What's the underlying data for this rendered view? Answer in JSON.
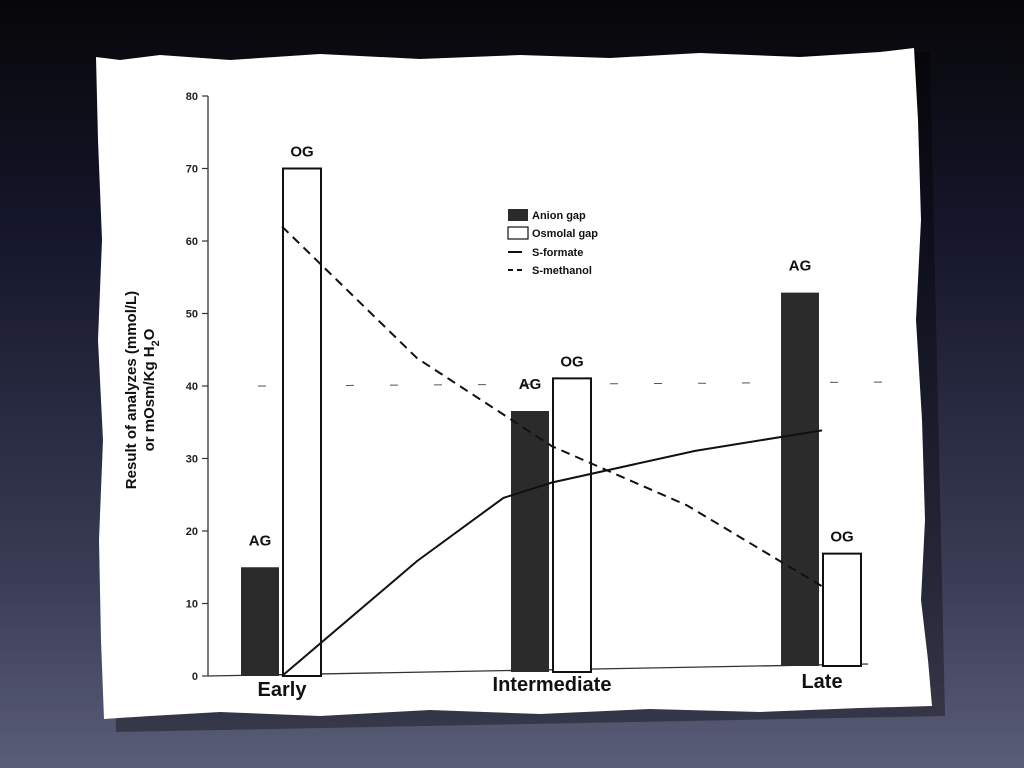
{
  "colors": {
    "anion_gap": "#2b2b2b",
    "osmolal_gap": "#ffffff",
    "line": "#111111",
    "paper": "#ffffff"
  },
  "chart_data": {
    "type": "bar",
    "categories": [
      "Early",
      "Intermediate",
      "Late"
    ],
    "ylabel_line1": "Result of analyzes (mmol/L)",
    "ylabel_line2": "or mOsm/Kg H",
    "ylabel_sub": "2",
    "ylabel_end": "O",
    "ylim": [
      0,
      80
    ],
    "yticks": [
      "0",
      "10",
      "20",
      "30",
      "40",
      "50",
      "60",
      "70",
      "80"
    ],
    "series": [
      {
        "name": "Anion gap",
        "kind": "bar",
        "short": "AG",
        "values": [
          15,
          36,
          51.5
        ]
      },
      {
        "name": "Osmolal gap",
        "kind": "bar",
        "short": "OG",
        "values": [
          70,
          40.5,
          15.5
        ]
      }
    ],
    "lines": [
      {
        "name": "S-formate",
        "style": "solid",
        "x": [
          0.0,
          0.5,
          0.82,
          1.0,
          1.53,
          2.0
        ],
        "values": [
          0,
          15.5,
          24,
          26,
          30,
          32.5
        ]
      },
      {
        "name": "S-methanol",
        "style": "dashed",
        "x": [
          0.0,
          0.5,
          1.0,
          1.5,
          2.0
        ],
        "values": [
          62,
          43.5,
          31,
          22.5,
          11
        ]
      }
    ],
    "legend_position": "top-center"
  }
}
